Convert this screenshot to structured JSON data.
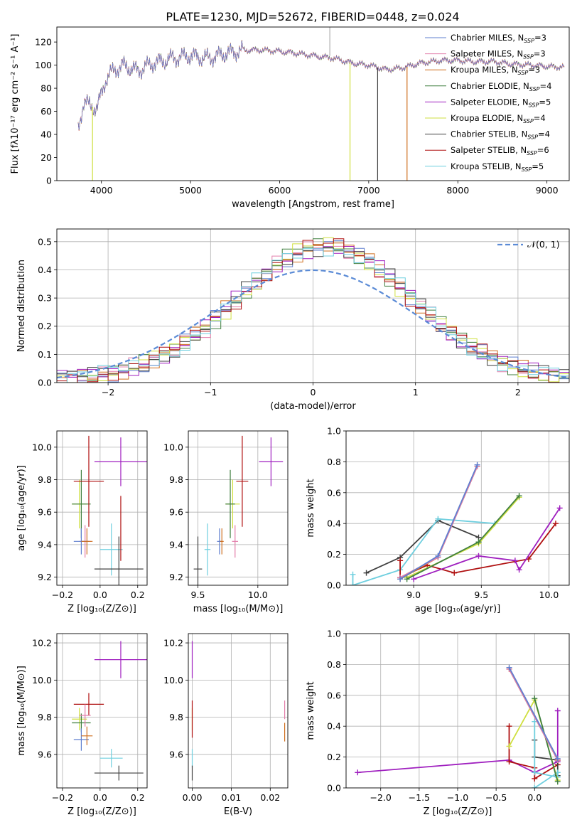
{
  "figure": {
    "title": "PLATE=1230, MJD=52672, FIBERID=0448, z=0.024"
  },
  "colors": {
    "Chabrier MILES": "#5f7fcf",
    "Salpeter MILES": "#e37fab",
    "Kroupa MILES": "#cf6f1f",
    "Chabrier ELODIE": "#3f7f3f",
    "Salpeter ELODIE": "#9f1fbf",
    "Kroupa ELODIE": "#cfdf3f",
    "Chabrier STELIB": "#3f3f3f",
    "Salpeter STELIB": "#af0f0f",
    "Kroupa STELIB": "#6fcfdf"
  },
  "chart_data": [
    {
      "id": "spectrum",
      "type": "line",
      "xlabel": "wavelength [Angstrom, rest frame]",
      "ylabel": "Flux [fλ10⁻¹⁷ erg cm⁻² s⁻¹ A⁻¹]",
      "xlim": [
        3500,
        9250
      ],
      "ylim": [
        0,
        133
      ],
      "xticks": [
        4000,
        5000,
        6000,
        7000,
        8000,
        9000
      ],
      "yticks": [
        0,
        20,
        40,
        60,
        80,
        100,
        120
      ],
      "grid": false,
      "legend_position": "top-right",
      "legend": [
        "Chabrier MILES, N_SSP=3",
        "Salpeter MILES, N_SSP=3",
        "Kroupa MILES, N_SSP=3",
        "Chabrier ELODIE, N_SSP=4",
        "Salpeter ELODIE, N_SSP=5",
        "Kroupa ELODIE, N_SSP=4",
        "Chabrier STELIB, N_SSP=4",
        "Salpeter STELIB, N_SSP=6",
        "Kroupa STELIB, N_SSP=5"
      ],
      "continuum": {
        "x": [
          3740,
          3800,
          3900,
          3950,
          4050,
          4150,
          4250,
          4400,
          4600,
          4800,
          5000,
          5200,
          5400,
          5600,
          5800,
          6000,
          6200,
          6400,
          6600,
          6800,
          7000,
          7200,
          7400,
          7600,
          7800,
          8000,
          8200,
          8400,
          8600,
          8800,
          9000,
          9200
        ],
        "y": [
          45,
          68,
          64,
          62,
          88,
          96,
          100,
          95,
          102,
          106,
          108,
          106,
          110,
          113,
          113,
          112,
          110,
          108,
          106,
          102,
          100,
          96,
          98,
          102,
          104,
          104,
          103,
          103,
          101,
          100,
          99,
          98
        ]
      },
      "dropouts": [
        {
          "series": "Kroupa ELODIE",
          "x": 3900,
          "y_to": 0
        },
        {
          "series": "Kroupa ELODIE",
          "x": 6790,
          "y_to": 0
        },
        {
          "series": "Chabrier STELIB",
          "x": 7100,
          "y_to": 0
        },
        {
          "series": "Kroupa MILES",
          "x": 7430,
          "y_to": 0
        }
      ]
    },
    {
      "id": "residuals",
      "type": "histogram",
      "xlabel": "(data-model)/error",
      "ylabel": "Normed distribution",
      "xlim": [
        -2.5,
        2.5
      ],
      "ylim": [
        0,
        0.545
      ],
      "xticks": [
        -2,
        -1,
        0,
        1,
        2
      ],
      "yticks": [
        0.0,
        0.1,
        0.2,
        0.3,
        0.4,
        0.5
      ],
      "grid": true,
      "legend_position": "top-right",
      "legend": [
        "𝒩(0, 1)"
      ],
      "bin_start": -2.5,
      "bin_width": 0.1,
      "envelope": [
        0.012,
        0.015,
        0.018,
        0.022,
        0.027,
        0.033,
        0.04,
        0.05,
        0.06,
        0.07,
        0.082,
        0.095,
        0.11,
        0.125,
        0.14,
        0.16,
        0.18,
        0.2,
        0.22,
        0.245,
        0.27,
        0.29,
        0.31,
        0.33,
        0.35,
        0.37,
        0.39,
        0.41,
        0.43,
        0.45,
        0.46,
        0.47,
        0.48,
        0.48,
        0.48,
        0.47,
        0.46,
        0.45,
        0.43,
        0.41,
        0.39,
        0.37,
        0.35,
        0.33,
        0.31,
        0.29,
        0.27,
        0.25,
        0.23,
        0.21,
        0.19,
        0.17,
        0.15,
        0.135,
        0.12,
        0.105,
        0.09,
        0.08,
        0.07,
        0.06,
        0.052,
        0.045,
        0.04,
        0.035,
        0.03,
        0.026,
        0.023,
        0.02,
        0.018,
        0.016,
        0.014,
        0.012,
        0.011,
        0.01,
        0.009,
        0.008,
        0.007,
        0.006,
        0.005,
        0.004,
        0.003,
        0.003,
        0.002,
        0.002,
        0.002,
        0.002,
        0.001,
        0.001,
        0.001,
        0.001,
        0.001,
        0.001,
        0.001,
        0.001,
        0.001,
        0.001,
        0.001,
        0.001,
        0.001,
        0.001
      ]
    },
    {
      "id": "age-vs-Z",
      "type": "errorbar",
      "xlabel": "Z [log₁₀(Z/Z⊙)]",
      "ylabel": "age  [log₁₀(age/yr)]",
      "xlim": [
        -0.23,
        0.25
      ],
      "ylim": [
        9.15,
        10.1
      ],
      "xticks": [
        -0.2,
        0.0,
        0.2
      ],
      "yticks": [
        9.2,
        9.4,
        9.6,
        9.8,
        10.0
      ],
      "grid": true,
      "points": [
        {
          "series": "Salpeter ELODIE",
          "x": 0.11,
          "xerr": 0.28,
          "y": 9.91,
          "yerr": 0.15
        },
        {
          "series": "Kroupa ELODIE",
          "x": -0.11,
          "xerr": 0.08,
          "y": 9.65,
          "yerr": 0.15
        },
        {
          "series": "Chabrier ELODIE",
          "x": -0.1,
          "xerr": 0.1,
          "y": 9.65,
          "yerr": 0.21
        },
        {
          "series": "Salpeter STELIB",
          "x": -0.06,
          "xerr": 0.16,
          "y": 9.79,
          "yerr": 0.28
        },
        {
          "series": "Salpeter MILES",
          "x": -0.08,
          "xerr": 0.06,
          "y": 9.42,
          "yerr": 0.1
        },
        {
          "series": "Chabrier MILES",
          "x": -0.1,
          "xerr": 0.08,
          "y": 9.42,
          "yerr": 0.08
        },
        {
          "series": "Kroupa MILES",
          "x": -0.07,
          "xerr": 0.06,
          "y": 9.42,
          "yerr": 0.08
        },
        {
          "series": "Kroupa STELIB",
          "x": 0.06,
          "xerr": 0.12,
          "y": 9.37,
          "yerr": 0.16
        },
        {
          "series": "Chabrier STELIB",
          "x": 0.1,
          "xerr": 0.26,
          "y": 9.25,
          "yerr": 0.2
        },
        {
          "series": "Salpeter STELIB",
          "x": 0.11,
          "xerr": 0.0,
          "y": 9.5,
          "yerr": 0.2
        }
      ]
    },
    {
      "id": "age-vs-mass",
      "type": "errorbar",
      "xlabel": "mass [log₁₀(M/M⊙)]",
      "ylabel": "",
      "xlim": [
        9.42,
        10.25
      ],
      "ylim": [
        9.15,
        10.1
      ],
      "xticks": [
        9.5,
        10.0
      ],
      "yticks": [
        9.2,
        9.4,
        9.6,
        9.8,
        10.0
      ],
      "grid": true,
      "points": [
        {
          "series": "Salpeter ELODIE",
          "x": 10.11,
          "xerr": 0.2,
          "y": 9.91,
          "yerr": 0.15
        },
        {
          "series": "Kroupa ELODIE",
          "x": 9.79,
          "xerr": 0.12,
          "y": 9.65,
          "yerr": 0.15
        },
        {
          "series": "Chabrier ELODIE",
          "x": 9.77,
          "xerr": 0.08,
          "y": 9.65,
          "yerr": 0.21
        },
        {
          "series": "Salpeter STELIB",
          "x": 9.87,
          "xerr": 0.1,
          "y": 9.79,
          "yerr": 0.28
        },
        {
          "series": "Salpeter MILES",
          "x": 9.81,
          "xerr": 0.05,
          "y": 9.42,
          "yerr": 0.1
        },
        {
          "series": "Chabrier MILES",
          "x": 9.68,
          "xerr": 0.04,
          "y": 9.42,
          "yerr": 0.08
        },
        {
          "series": "Kroupa MILES",
          "x": 9.7,
          "xerr": 0.03,
          "y": 9.42,
          "yerr": 0.08
        },
        {
          "series": "Kroupa STELIB",
          "x": 9.58,
          "xerr": 0.05,
          "y": 9.37,
          "yerr": 0.16
        },
        {
          "series": "Chabrier STELIB",
          "x": 9.5,
          "xerr": 0.07,
          "y": 9.25,
          "yerr": 0.2
        }
      ]
    },
    {
      "id": "weight-vs-age",
      "type": "line",
      "xlabel": "age  [log₁₀(age/yr)]",
      "ylabel": "mass weight",
      "xlim": [
        8.5,
        10.15
      ],
      "ylim": [
        0,
        1.0
      ],
      "xticks": [
        9.0,
        9.5,
        10.0
      ],
      "yticks": [
        0.0,
        0.2,
        0.4,
        0.6,
        0.8,
        1.0
      ],
      "grid": true,
      "series": [
        {
          "series": "Chabrier STELIB",
          "x": [
            8.65,
            8.9,
            9.18,
            9.48
          ],
          "y": [
            0.08,
            0.18,
            0.42,
            0.31
          ]
        },
        {
          "series": "Kroupa STELIB",
          "x": [
            8.55,
            8.55,
            8.9,
            9.18,
            9.6,
            9.78
          ],
          "y": [
            0.07,
            0.0,
            0.1,
            0.43,
            0.4,
            0.57
          ]
        },
        {
          "series": "Salpeter STELIB",
          "x": [
            8.9,
            8.9,
            9.1,
            9.3,
            9.85,
            10.05
          ],
          "y": [
            0.16,
            0.05,
            0.13,
            0.08,
            0.17,
            0.4
          ]
        },
        {
          "series": "Salpeter ELODIE",
          "x": [
            9.0,
            9.48,
            9.75,
            9.78,
            10.08
          ],
          "y": [
            0.04,
            0.19,
            0.16,
            0.1,
            0.5
          ]
        },
        {
          "series": "Kroupa ELODIE",
          "x": [
            8.95,
            9.48,
            9.78
          ],
          "y": [
            0.05,
            0.27,
            0.57
          ]
        },
        {
          "series": "Chabrier ELODIE",
          "x": [
            8.95,
            9.48,
            9.78
          ],
          "y": [
            0.04,
            0.28,
            0.58
          ]
        },
        {
          "series": "Kroupa MILES",
          "x": [
            8.9,
            9.18,
            9.47
          ],
          "y": [
            0.04,
            0.18,
            0.77
          ]
        },
        {
          "series": "Salpeter MILES",
          "x": [
            8.9,
            9.18,
            9.47
          ],
          "y": [
            0.05,
            0.18,
            0.77
          ]
        },
        {
          "series": "Chabrier MILES",
          "x": [
            8.9,
            9.18,
            9.47
          ],
          "y": [
            0.04,
            0.19,
            0.78
          ]
        }
      ]
    },
    {
      "id": "mass-vs-Z",
      "type": "errorbar",
      "xlabel": "Z [log₁₀(Z/Z⊙)]",
      "ylabel": "mass [log₁₀(M/M⊙)]",
      "xlim": [
        -0.23,
        0.25
      ],
      "ylim": [
        9.42,
        10.25
      ],
      "xticks": [
        -0.2,
        0.0,
        0.2
      ],
      "yticks": [
        9.6,
        9.8,
        10.0,
        10.2
      ],
      "grid": true,
      "points": [
        {
          "series": "Salpeter ELODIE",
          "x": 0.11,
          "xerr": 0.28,
          "y": 10.11,
          "yerr": 0.1
        },
        {
          "series": "Kroupa ELODIE",
          "x": -0.11,
          "xerr": 0.08,
          "y": 9.79,
          "yerr": 0.06
        },
        {
          "series": "Chabrier ELODIE",
          "x": -0.1,
          "xerr": 0.1,
          "y": 9.77,
          "yerr": 0.05
        },
        {
          "series": "Salpeter STELIB",
          "x": -0.06,
          "xerr": 0.16,
          "y": 9.87,
          "yerr": 0.06
        },
        {
          "series": "Salpeter MILES",
          "x": -0.08,
          "xerr": 0.06,
          "y": 9.81,
          "yerr": 0.06
        },
        {
          "series": "Chabrier MILES",
          "x": -0.1,
          "xerr": 0.08,
          "y": 9.68,
          "yerr": 0.06
        },
        {
          "series": "Kroupa MILES",
          "x": -0.07,
          "xerr": 0.06,
          "y": 9.7,
          "yerr": 0.05
        },
        {
          "series": "Kroupa STELIB",
          "x": 0.06,
          "xerr": 0.12,
          "y": 9.58,
          "yerr": 0.05
        },
        {
          "series": "Chabrier STELIB",
          "x": 0.1,
          "xerr": 0.26,
          "y": 9.5,
          "yerr": 0.04
        }
      ]
    },
    {
      "id": "mass-vs-ebv",
      "type": "errorbar",
      "xlabel": "E(B-V)",
      "ylabel": "",
      "xlim": [
        -0.001,
        0.0245
      ],
      "ylim": [
        9.42,
        10.25
      ],
      "xticks": [
        0.0,
        0.01,
        0.02
      ],
      "yticks": [
        9.6,
        9.8,
        10.0,
        10.2
      ],
      "grid": true,
      "points": [
        {
          "series": "Salpeter ELODIE",
          "x": 0.0,
          "xerr": 0.0,
          "y": 10.11,
          "yerr": 0.1
        },
        {
          "series": "Kroupa ELODIE",
          "x": 0.0,
          "xerr": 0.0,
          "y": 9.79,
          "yerr": 0.06
        },
        {
          "series": "Salpeter STELIB",
          "x": 0.0,
          "xerr": 0.0,
          "y": 9.79,
          "yerr": 0.1
        },
        {
          "series": "Kroupa STELIB",
          "x": 0.0,
          "xerr": 0.0,
          "y": 9.58,
          "yerr": 0.05
        },
        {
          "series": "Chabrier STELIB",
          "x": 0.0,
          "xerr": 0.0,
          "y": 9.5,
          "yerr": 0.04
        },
        {
          "series": "Salpeter MILES",
          "x": 0.0237,
          "xerr": 0.0,
          "y": 9.84,
          "yerr": 0.05
        },
        {
          "series": "Kroupa MILES",
          "x": 0.0237,
          "xerr": 0.0,
          "y": 9.72,
          "yerr": 0.05
        }
      ]
    },
    {
      "id": "weight-vs-Z",
      "type": "line",
      "xlabel": "Z [log₁₀(Z/Z⊙)]",
      "ylabel": "mass weight",
      "xlim": [
        -2.45,
        0.45
      ],
      "ylim": [
        0,
        1.0
      ],
      "xticks": [
        -2.0,
        -1.5,
        -1.0,
        -0.5,
        0.0
      ],
      "yticks": [
        0.0,
        0.2,
        0.4,
        0.6,
        0.8,
        1.0
      ],
      "grid": true,
      "series": [
        {
          "series": "Salpeter ELODIE",
          "x": [
            -2.3,
            -0.33,
            0.0,
            0.3,
            0.3
          ],
          "y": [
            0.1,
            0.18,
            0.1,
            0.17,
            0.5
          ]
        },
        {
          "series": "Salpeter STELIB",
          "x": [
            -0.33,
            -0.33,
            0.0,
            0.0,
            0.3,
            0.3
          ],
          "y": [
            0.4,
            0.17,
            0.13,
            0.06,
            0.15,
            0.18
          ]
        },
        {
          "series": "Chabrier STELIB",
          "x": [
            0.0,
            0.0,
            0.3,
            0.3
          ],
          "y": [
            0.31,
            0.2,
            0.18,
            0.08
          ]
        },
        {
          "series": "Kroupa STELIB",
          "x": [
            0.0,
            0.0,
            0.3,
            0.3,
            0.0
          ],
          "y": [
            0.43,
            0.1,
            0.07,
            0.1,
            0.0
          ]
        },
        {
          "series": "Kroupa ELODIE",
          "x": [
            -0.33,
            0.0,
            0.3
          ],
          "y": [
            0.27,
            0.57,
            0.05
          ]
        },
        {
          "series": "Chabrier ELODIE",
          "x": [
            0.0,
            0.3
          ],
          "y": [
            0.58,
            0.04
          ]
        },
        {
          "series": "Kroupa MILES",
          "x": [
            -0.33,
            0.3
          ],
          "y": [
            0.77,
            0.18
          ]
        },
        {
          "series": "Salpeter MILES",
          "x": [
            -0.33,
            0.3
          ],
          "y": [
            0.77,
            0.18
          ]
        },
        {
          "series": "Chabrier MILES",
          "x": [
            -0.33,
            0.3
          ],
          "y": [
            0.78,
            0.19
          ]
        }
      ]
    }
  ]
}
